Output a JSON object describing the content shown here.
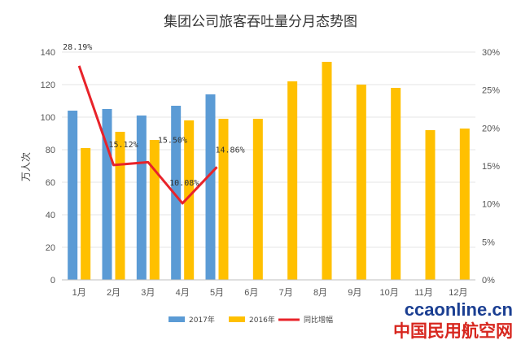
{
  "chart_data": {
    "type": "bar",
    "title": "集团公司旅客吞吐量分月态势图",
    "ylabel": "万人次",
    "categories": [
      "1月",
      "2月",
      "3月",
      "4月",
      "5月",
      "6月",
      "7月",
      "8月",
      "9月",
      "10月",
      "11月",
      "12月"
    ],
    "ylim": [
      0,
      140
    ],
    "y_ticks": [
      0,
      20,
      40,
      60,
      80,
      100,
      120,
      140
    ],
    "y2lim": [
      0,
      30
    ],
    "y2_ticks": [
      "0%",
      "5%",
      "10%",
      "15%",
      "20%",
      "25%",
      "30%"
    ],
    "series": [
      {
        "name": "2017年",
        "color": "#5b9bd5",
        "values": [
          104,
          105,
          101,
          107,
          114,
          null,
          null,
          null,
          null,
          null,
          null,
          null
        ]
      },
      {
        "name": "2016年",
        "color": "#ffc000",
        "values": [
          81,
          91,
          86,
          98,
          99,
          99,
          122,
          134,
          120,
          118,
          92,
          93
        ]
      }
    ],
    "line": {
      "name": "同比增幅",
      "color": "#e8232a",
      "values": [
        28.19,
        15.12,
        15.5,
        10.08,
        14.86
      ],
      "labels": [
        "28.19%",
        "15.12%",
        "15.50%",
        "10.08%",
        "14.86%"
      ]
    }
  },
  "watermark": {
    "site": "ccaonline.cn",
    "name": "中国民用航空网"
  }
}
